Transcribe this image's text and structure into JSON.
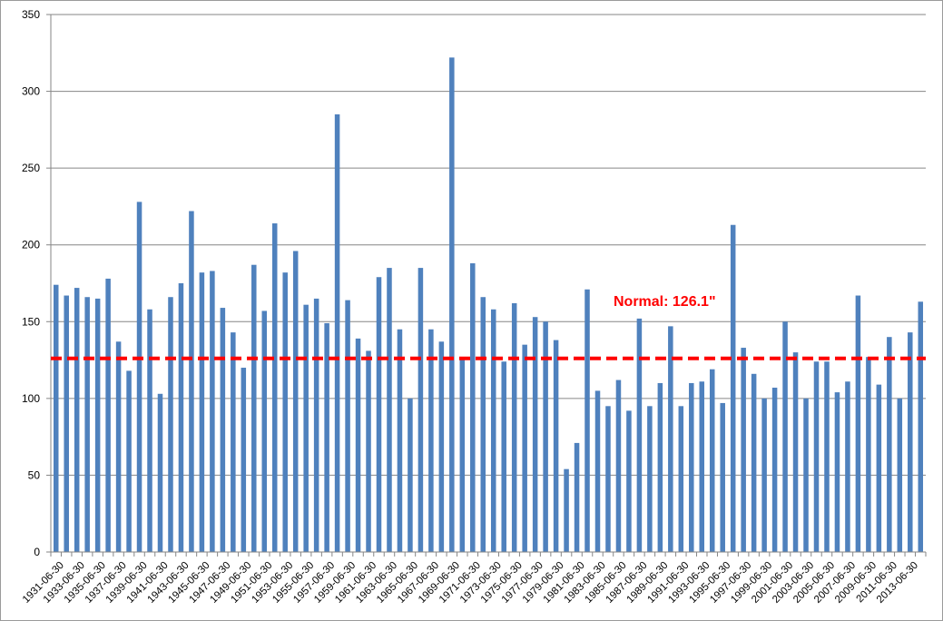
{
  "chart_data": {
    "type": "bar",
    "title": "",
    "xlabel": "",
    "ylabel": "",
    "ylim": [
      0,
      350
    ],
    "yticks": [
      0,
      50,
      100,
      150,
      200,
      250,
      300,
      350
    ],
    "grid": "horizontal",
    "bar_color": "#4f81bd",
    "x_start_year": 1931,
    "x_tick_labels": [
      "1931-06-30",
      "1933-06-30",
      "1935-06-30",
      "1937-06-30",
      "1939-06-30",
      "1941-06-30",
      "1943-06-30",
      "1945-06-30",
      "1947-06-30",
      "1949-06-30",
      "1951-06-30",
      "1953-06-30",
      "1955-06-30",
      "1957-06-30",
      "1959-06-30",
      "1961-06-30",
      "1963-06-30",
      "1965-06-30",
      "1967-06-30",
      "1969-06-30",
      "1971-06-30",
      "1973-06-30",
      "1975-06-30",
      "1977-06-30",
      "1979-06-30",
      "1981-06-30",
      "1983-06-30",
      "1985-06-30",
      "1987-06-30",
      "1989-06-30",
      "1991-06-30",
      "1993-06-30",
      "1995-06-30",
      "1997-06-30",
      "1999-06-30",
      "2001-06-30",
      "2003-06-30",
      "2005-06-30",
      "2007-06-30",
      "2009-06-30",
      "2011-06-30",
      "2013-06-30"
    ],
    "values": [
      174,
      167,
      172,
      166,
      165,
      178,
      137,
      118,
      228,
      158,
      103,
      166,
      175,
      222,
      182,
      183,
      159,
      143,
      120,
      187,
      157,
      214,
      182,
      196,
      161,
      165,
      149,
      285,
      164,
      139,
      131,
      179,
      185,
      145,
      100,
      185,
      145,
      137,
      322,
      126,
      188,
      166,
      158,
      124,
      162,
      135,
      153,
      150,
      138,
      54,
      71,
      171,
      105,
      95,
      112,
      92,
      152,
      95,
      110,
      147,
      95,
      110,
      111,
      119,
      97,
      213,
      133,
      116,
      100,
      107,
      150,
      130,
      100,
      124,
      124,
      104,
      111,
      167,
      127,
      109,
      140,
      100,
      143,
      163
    ],
    "normal": {
      "value": 126.1,
      "label": "Normal: 126.1\"",
      "color": "#ff0000"
    }
  }
}
